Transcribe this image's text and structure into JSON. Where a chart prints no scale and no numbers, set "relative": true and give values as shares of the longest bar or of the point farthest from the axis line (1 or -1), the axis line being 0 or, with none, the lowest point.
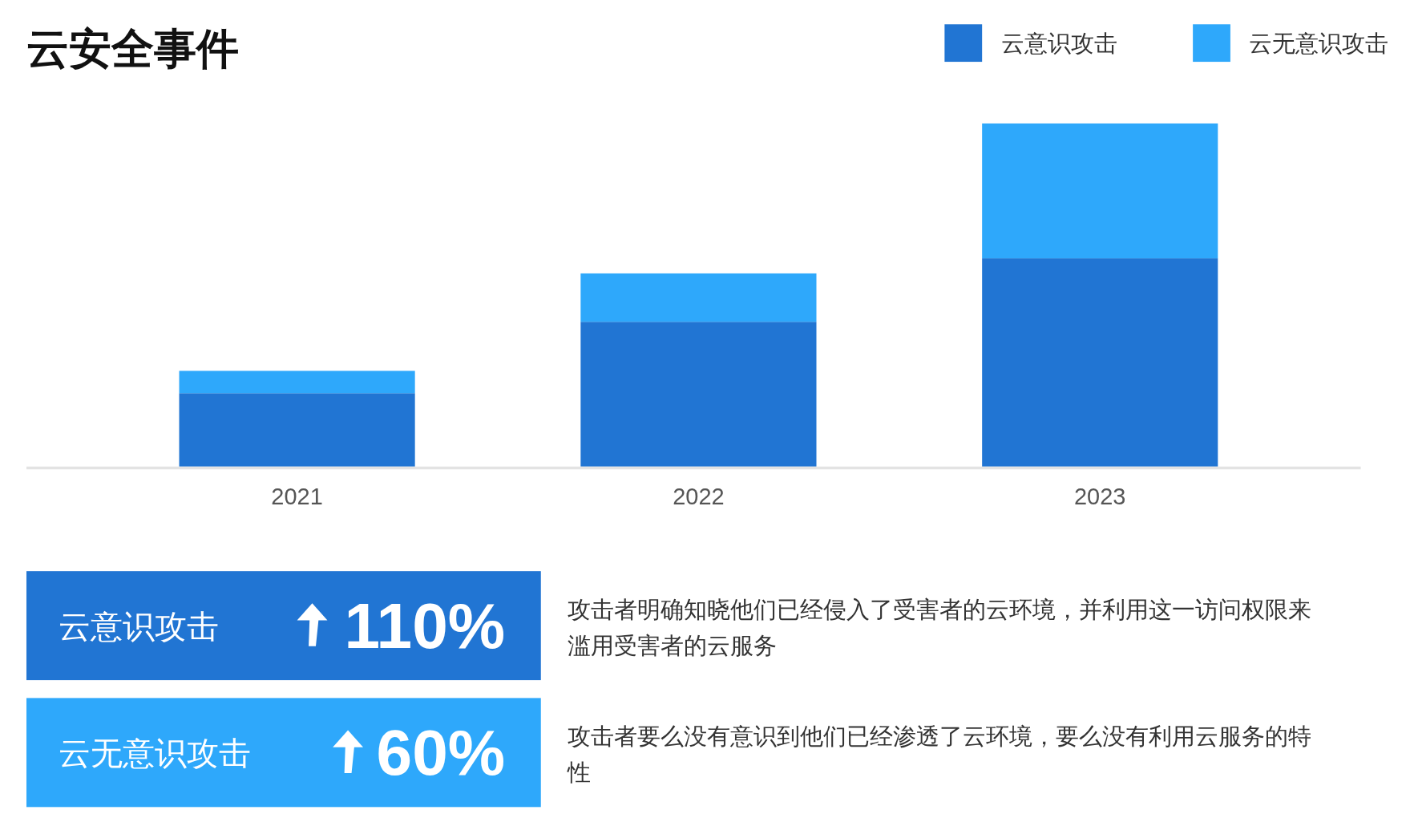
{
  "chart_data": {
    "type": "bar",
    "title": "云安全事件",
    "stacked": true,
    "relative": true,
    "legend": "top right",
    "categories": [
      "2021",
      "2022",
      "2023"
    ],
    "series": [
      {
        "name": "云意识攻击",
        "color": "#2175d3",
        "values": [
          0.214,
          0.422,
          0.607
        ]
      },
      {
        "name": "云无意识攻击",
        "color": "#2ea8fb",
        "values": [
          0.065,
          0.141,
          0.393
        ]
      }
    ],
    "annotations": [
      "云意识攻击",
      "110%",
      "攻击者明确知晓他们已经侵入了受害者的云环境，并利用这一访问权限来滥用受害者的云服务",
      "云无意识攻击",
      "60%",
      "攻击者要么没有意识到他们已经渗透了云环境，要么没有利用云服务的特性"
    ]
  }
}
